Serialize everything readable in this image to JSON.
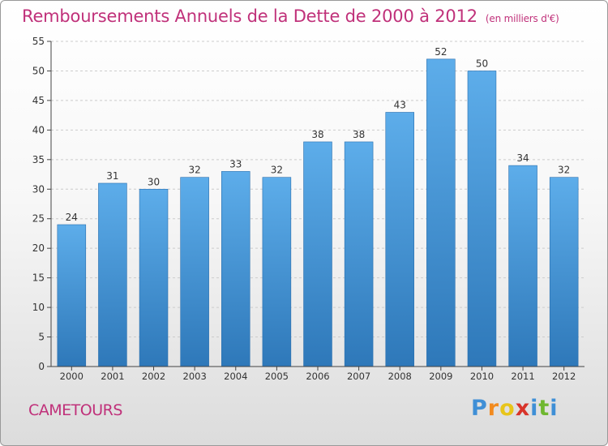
{
  "header": {
    "title": "Remboursements Annuels de la Dette de 2000 à 2012",
    "unit": "(en milliers d'€)"
  },
  "footer": {
    "town": "CAMETOURS",
    "logo_letters": [
      "P",
      "r",
      "o",
      "x",
      "i",
      "t",
      "i"
    ],
    "logo_colors": [
      "#3f8fd6",
      "#f28a1e",
      "#e8c51a",
      "#d8342a",
      "#3f8fd6",
      "#6fb730",
      "#3f8fd6"
    ]
  },
  "colors": {
    "title": "#c0317a",
    "bar_top": "#5dadea",
    "bar_bottom": "#2e78b9",
    "axis": "#444444",
    "grid": "#cccccc"
  },
  "chart_data": {
    "type": "bar",
    "categories": [
      "2000",
      "2001",
      "2002",
      "2003",
      "2004",
      "2005",
      "2006",
      "2007",
      "2008",
      "2009",
      "2010",
      "2011",
      "2012"
    ],
    "values": [
      24,
      31,
      30,
      32,
      33,
      32,
      38,
      38,
      43,
      52,
      50,
      34,
      32
    ],
    "ylim": [
      0,
      55
    ],
    "yticks": [
      0,
      5,
      10,
      15,
      20,
      25,
      30,
      35,
      40,
      45,
      50,
      55
    ],
    "grid": "horizontal dashed",
    "data_labels": true
  }
}
